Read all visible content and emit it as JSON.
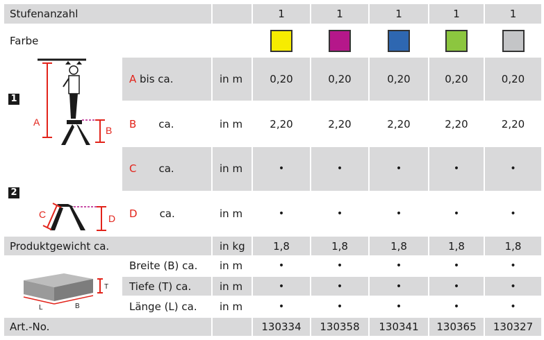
{
  "headers": {
    "steps_label": "Stufenanzahl",
    "color_label": "Farbe",
    "steps_values": [
      "1",
      "1",
      "1",
      "1",
      "1"
    ]
  },
  "colors": [
    "#f7ec00",
    "#b5178a",
    "#2e67b1",
    "#8cc63f",
    "#c4c5c7"
  ],
  "section1": {
    "number": "1",
    "figure_labels": {
      "a": "A",
      "b": "B"
    },
    "row_a": {
      "letter": "A",
      "label": " bis ca.",
      "unit": "in m",
      "values": [
        "0,20",
        "0,20",
        "0,20",
        "0,20",
        "0,20"
      ]
    },
    "row_b": {
      "letter": "B",
      "label": "ca.",
      "unit": "in m",
      "values": [
        "2,20",
        "2,20",
        "2,20",
        "2,20",
        "2,20"
      ]
    }
  },
  "section2": {
    "number": "2",
    "figure_labels": {
      "c": "C",
      "d": "D"
    },
    "row_c": {
      "letter": "C",
      "label": "ca.",
      "unit": "in m",
      "values": [
        "•",
        "•",
        "•",
        "•",
        "•"
      ]
    },
    "row_d": {
      "letter": "D",
      "label": "ca.",
      "unit": "in m",
      "values": [
        "•",
        "•",
        "•",
        "•",
        "•"
      ]
    }
  },
  "weight": {
    "label": "Produktgewicht ca.",
    "unit": "in kg",
    "values": [
      "1,8",
      "1,8",
      "1,8",
      "1,8",
      "1,8"
    ]
  },
  "dimensions": {
    "figure_labels": {
      "l": "L",
      "b": "B",
      "t": "T"
    },
    "rows": [
      {
        "label": "Breite (B) ca.",
        "unit": "in m",
        "values": [
          "•",
          "•",
          "•",
          "•",
          "•"
        ]
      },
      {
        "label": "Tiefe (T) ca.",
        "unit": "in m",
        "values": [
          "•",
          "•",
          "•",
          "•",
          "•"
        ]
      },
      {
        "label": "Länge (L) ca.",
        "unit": "in m",
        "values": [
          "•",
          "•",
          "•",
          "•",
          "•"
        ]
      }
    ]
  },
  "article": {
    "label": "Art.-No.",
    "values": [
      "130334",
      "130358",
      "130341",
      "130365",
      "130327"
    ]
  }
}
